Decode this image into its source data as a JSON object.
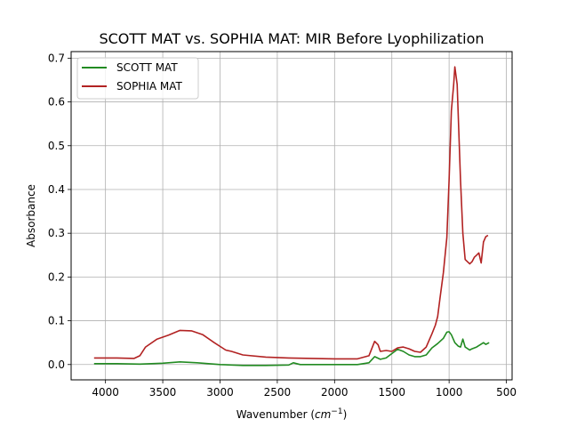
{
  "chart_data": {
    "type": "line",
    "title": "SCOTT MAT vs. SOPHIA MAT: MIR Before Lyophilization",
    "xlabel": "Wavenumber (cm⁻¹)",
    "ylabel": "Absorbance",
    "xlim": [
      4300,
      450
    ],
    "ylim": [
      -0.035,
      0.715
    ],
    "x_inverted": true,
    "grid": true,
    "legend_position": "top-left",
    "xticks": [
      4000,
      3500,
      3000,
      2500,
      2000,
      1500,
      1000,
      500
    ],
    "yticks": [
      0.0,
      0.1,
      0.2,
      0.3,
      0.4,
      0.5,
      0.6,
      0.7
    ],
    "xtick_labels": [
      "4000",
      "3500",
      "3000",
      "2500",
      "2000",
      "1500",
      "1000",
      "500"
    ],
    "ytick_labels": [
      "0.0",
      "0.1",
      "0.2",
      "0.3",
      "0.4",
      "0.5",
      "0.6",
      "0.7"
    ],
    "series": [
      {
        "name": "SCOTT MAT",
        "color": "#228B22",
        "x": [
          4100,
          3900,
          3700,
          3500,
          3350,
          3200,
          3000,
          2800,
          2600,
          2400,
          2360,
          2300,
          2000,
          1800,
          1700,
          1650,
          1600,
          1550,
          1500,
          1450,
          1400,
          1350,
          1300,
          1250,
          1200,
          1150,
          1100,
          1050,
          1020,
          1000,
          980,
          950,
          920,
          900,
          880,
          860,
          820,
          800,
          760,
          700,
          680,
          650
        ],
        "y": [
          0.002,
          0.002,
          0.001,
          0.003,
          0.006,
          0.004,
          0.0,
          -0.002,
          -0.002,
          -0.001,
          0.004,
          0.0,
          0.0,
          0.0,
          0.004,
          0.018,
          0.012,
          0.015,
          0.025,
          0.035,
          0.03,
          0.022,
          0.018,
          0.018,
          0.022,
          0.038,
          0.048,
          0.06,
          0.074,
          0.075,
          0.068,
          0.05,
          0.042,
          0.04,
          0.058,
          0.04,
          0.033,
          0.036,
          0.04,
          0.05,
          0.046,
          0.05
        ]
      },
      {
        "name": "SOPHIA MAT",
        "color": "#B22222",
        "x": [
          4100,
          3900,
          3750,
          3700,
          3650,
          3550,
          3450,
          3350,
          3250,
          3150,
          3050,
          2950,
          2900,
          2800,
          2600,
          2400,
          2200,
          2000,
          1800,
          1700,
          1650,
          1620,
          1600,
          1550,
          1500,
          1450,
          1400,
          1350,
          1300,
          1250,
          1200,
          1150,
          1120,
          1100,
          1080,
          1050,
          1020,
          1000,
          980,
          960,
          950,
          930,
          900,
          880,
          860,
          840,
          820,
          800,
          780,
          760,
          740,
          720,
          700,
          680,
          660
        ],
        "y": [
          0.015,
          0.015,
          0.014,
          0.02,
          0.04,
          0.058,
          0.067,
          0.078,
          0.077,
          0.068,
          0.05,
          0.033,
          0.03,
          0.022,
          0.017,
          0.015,
          0.014,
          0.013,
          0.013,
          0.02,
          0.053,
          0.045,
          0.03,
          0.032,
          0.03,
          0.038,
          0.04,
          0.036,
          0.03,
          0.028,
          0.04,
          0.07,
          0.09,
          0.11,
          0.15,
          0.21,
          0.29,
          0.42,
          0.58,
          0.64,
          0.68,
          0.64,
          0.42,
          0.3,
          0.24,
          0.235,
          0.23,
          0.235,
          0.245,
          0.25,
          0.255,
          0.232,
          0.28,
          0.292,
          0.295
        ]
      }
    ]
  }
}
